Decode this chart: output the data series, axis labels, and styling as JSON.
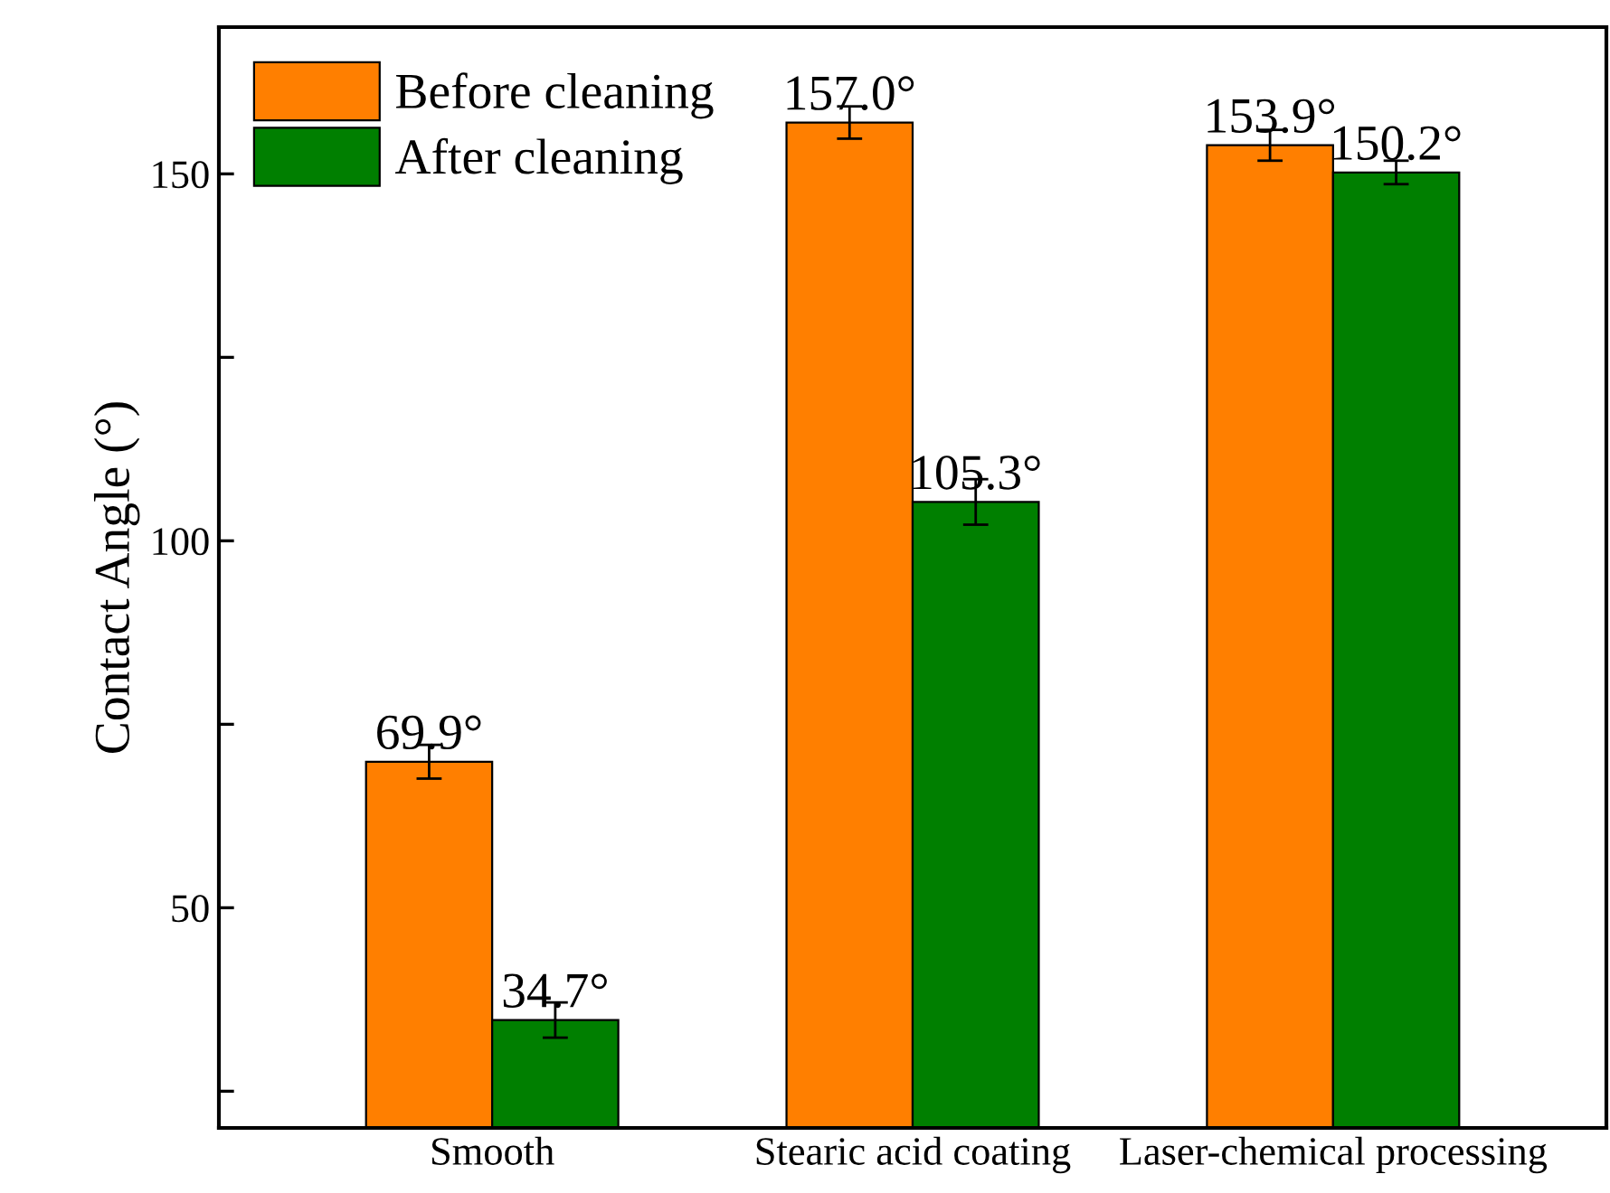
{
  "chart_data": {
    "type": "bar",
    "ylabel": "Contact Angle (°)",
    "categories": [
      "Smooth",
      "Stearic acid coating",
      "Laser-chemical processing"
    ],
    "series": [
      {
        "name": "Before cleaning",
        "color": "#ff7f00",
        "values": [
          69.9,
          157.0,
          153.9
        ],
        "errors": [
          2.3,
          2.2,
          2.1
        ],
        "value_labels": [
          "69.9°",
          "157.0°",
          "153.9°"
        ]
      },
      {
        "name": "After cleaning",
        "color": "#007f00",
        "values": [
          34.7,
          105.3,
          150.2
        ],
        "errors": [
          2.4,
          3.1,
          1.6
        ],
        "value_labels": [
          "34.7°",
          "105.3°",
          "150.2°"
        ]
      }
    ],
    "ylim": [
      20,
      170
    ],
    "yticks": [
      {
        "value": 25,
        "label": null
      },
      50,
      {
        "value": 75,
        "label": null
      },
      100,
      {
        "value": 125,
        "label": null
      },
      150
    ],
    "grid": false,
    "legend": "top left"
  }
}
